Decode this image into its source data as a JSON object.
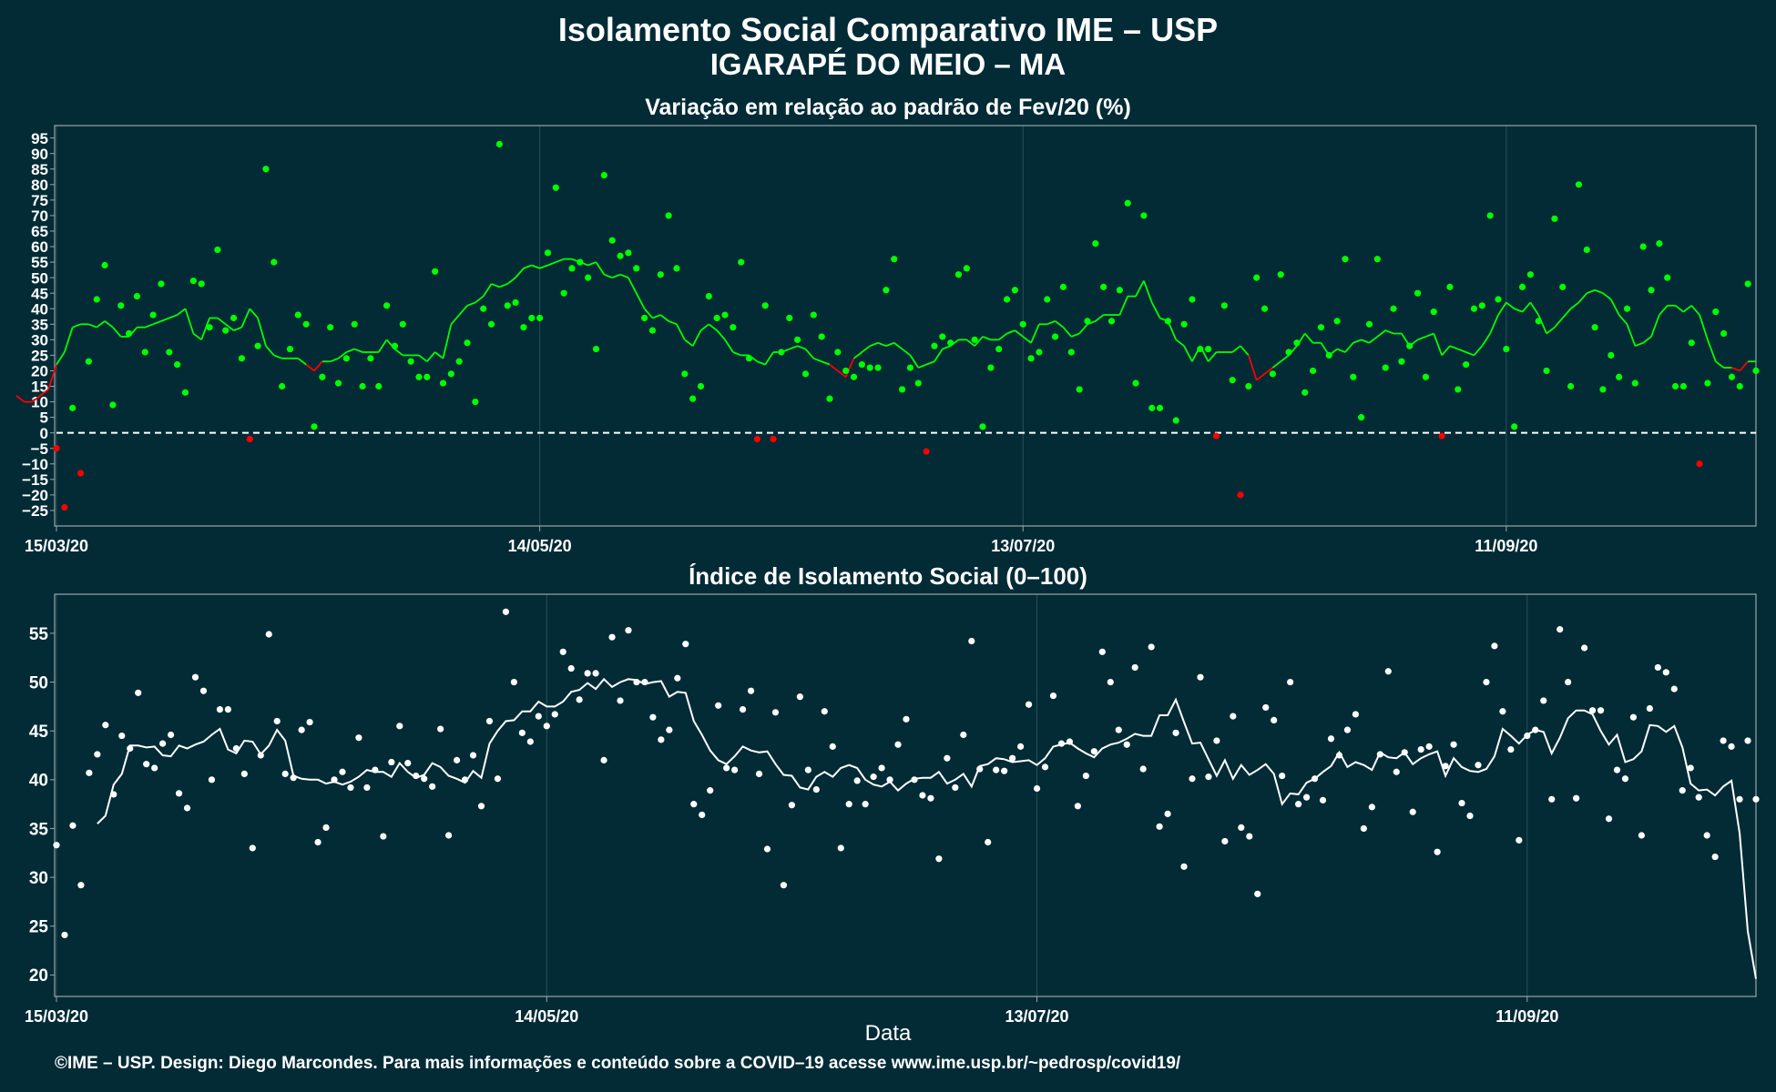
{
  "title_line1": "Isolamento Social Comparativo IME – USP",
  "title_line2": "IGARAPÉ DO MEIO – MA",
  "xlabel": "Data",
  "footer": "©IME – USP. Design: Diego Marcondes. Para mais informações e conteúdo sobre a COVID–19 acesse www.ime.usp.br/~pedrosp/covid19/",
  "colors": {
    "background": "#022b36",
    "positive": "#00ff00",
    "negative": "#ff0000",
    "index": "#ffffff",
    "panel_border": "#9aa5a8",
    "grid": "#2a4f59"
  },
  "chart_data": [
    {
      "type": "scatter",
      "title": "Variação em relação ao padrão de Fev/20 (%)",
      "x_tick_labels": [
        "15/03/20",
        "14/05/20",
        "13/07/20",
        "11/09/20"
      ],
      "ylim": [
        -30,
        99
      ],
      "y_ticks": [
        -25,
        -20,
        -15,
        -10,
        -5,
        0,
        5,
        10,
        15,
        20,
        25,
        30,
        35,
        40,
        45,
        50,
        55,
        60,
        65,
        70,
        75,
        80,
        85,
        90,
        95
      ],
      "reference_line": 0,
      "trend_line": "moving average",
      "values": [
        -5,
        -24,
        8,
        -13,
        23,
        43,
        54,
        9,
        41,
        32,
        44,
        26,
        38,
        48,
        26,
        22,
        13,
        49,
        48,
        34,
        59,
        33,
        37,
        24,
        -2,
        28,
        85,
        55,
        15,
        27,
        38,
        35,
        2,
        18,
        34,
        16,
        24,
        35,
        15,
        24,
        15,
        41,
        28,
        35,
        23,
        18,
        18,
        52,
        16,
        19,
        23,
        29,
        10,
        40,
        35,
        93,
        41,
        42,
        34,
        37,
        37,
        58,
        79,
        45,
        53,
        55,
        50,
        27,
        83,
        62,
        57,
        58,
        53,
        37,
        33,
        51,
        70,
        53,
        19,
        11,
        15,
        44,
        37,
        38,
        34,
        55,
        24,
        -2,
        41,
        -2,
        26,
        37,
        30,
        19,
        38,
        31,
        11,
        26,
        20,
        18,
        22,
        21,
        21,
        46,
        56,
        14,
        21,
        16,
        -6,
        28,
        31,
        29,
        51,
        53,
        30,
        2,
        21,
        27,
        43,
        46,
        35,
        24,
        26,
        43,
        31,
        47,
        26,
        14,
        36,
        61,
        47,
        36,
        46,
        74,
        16,
        70,
        8,
        8,
        36,
        4,
        35,
        43,
        27,
        27,
        -1,
        41,
        17,
        -20,
        15,
        50,
        40,
        19,
        51,
        26,
        29,
        13,
        20,
        34,
        25,
        36,
        56,
        18,
        5,
        35,
        56,
        21,
        40,
        23,
        28,
        45,
        18,
        39,
        -1,
        47,
        14,
        22,
        40,
        41,
        70,
        43,
        27,
        2,
        47,
        51,
        36,
        20,
        69,
        47,
        15,
        80,
        59,
        34,
        14,
        25,
        18,
        40,
        16,
        60,
        46,
        61,
        50,
        15,
        15,
        29,
        -10,
        16,
        39,
        32,
        18,
        15,
        48,
        20
      ],
      "moving_average": [
        12,
        10,
        10,
        12,
        14,
        22,
        26,
        34,
        35,
        35,
        34,
        36,
        34,
        31,
        31,
        34,
        34,
        35,
        36,
        37,
        38,
        40,
        32,
        30,
        37,
        37,
        35,
        33,
        34,
        40,
        37,
        28,
        25,
        24,
        24,
        24,
        22,
        20,
        23,
        23,
        24,
        26,
        27,
        26,
        26,
        26,
        30,
        27,
        25,
        25,
        25,
        23,
        26,
        24,
        35,
        38,
        41,
        42,
        44,
        48,
        47,
        48,
        50,
        53,
        54,
        53,
        54,
        55,
        56,
        56,
        55,
        54,
        55,
        51,
        50,
        51,
        50,
        45,
        40,
        37,
        38,
        36,
        35,
        30,
        28,
        33,
        35,
        33,
        30,
        26,
        25,
        25,
        23,
        22,
        26,
        26,
        27,
        28,
        27,
        24,
        23,
        22,
        20,
        18,
        24,
        26,
        28,
        29,
        28,
        29,
        27,
        25,
        21,
        22,
        23,
        27,
        28,
        30,
        30,
        28,
        31,
        30,
        30,
        32,
        33,
        31,
        29,
        35,
        35,
        36,
        34,
        31,
        32,
        35,
        36,
        38,
        38,
        38,
        44,
        44,
        49,
        42,
        37,
        36,
        30,
        28,
        23,
        28,
        23,
        26,
        26,
        26,
        28,
        25,
        17,
        19,
        21,
        23,
        25,
        28,
        32,
        29,
        29,
        25,
        27,
        26,
        29,
        30,
        29,
        31,
        33,
        32,
        32,
        28,
        30,
        31,
        32,
        25,
        28,
        27,
        26,
        25,
        28,
        32,
        38,
        42,
        40,
        39,
        42,
        38,
        32,
        34,
        37,
        40,
        42,
        45,
        46,
        45,
        43,
        38,
        35,
        28,
        29,
        31,
        38,
        41,
        41,
        39,
        41,
        38,
        30,
        23,
        21,
        21,
        20,
        23,
        23
      ]
    },
    {
      "type": "scatter",
      "title": "Índice de Isolamento Social (0–100)",
      "x_tick_labels": [
        "15/03/20",
        "14/05/20",
        "13/07/20",
        "11/09/20"
      ],
      "ylim": [
        17.8,
        59
      ],
      "y_ticks": [
        20,
        25,
        30,
        35,
        40,
        45,
        50,
        55
      ],
      "trend_line": "moving average",
      "values": [
        33.3,
        24.1,
        35.3,
        29.2,
        40.7,
        42.6,
        45.6,
        38.5,
        44.5,
        43.2,
        48.9,
        41.6,
        41.2,
        43.7,
        44.6,
        38.6,
        37.1,
        50.5,
        49.1,
        40.0,
        47.2,
        47.2,
        43.2,
        40.6,
        33.0,
        42.5,
        54.9,
        46.0,
        40.6,
        40.2,
        45.1,
        45.9,
        33.6,
        35.1,
        40.0,
        40.8,
        39.2,
        44.3,
        39.2,
        41.0,
        34.2,
        41.8,
        45.5,
        41.7,
        40.4,
        40.1,
        39.3,
        45.2,
        34.3,
        42.0,
        40.0,
        42.5,
        37.3,
        46.0,
        40.1,
        57.2,
        50.0,
        44.8,
        43.9,
        46.5,
        45.5,
        46.7,
        53.1,
        51.4,
        48.2,
        50.9,
        50.9,
        42.0,
        54.6,
        48.1,
        55.3,
        50.0,
        50.0,
        46.4,
        44.1,
        45.1,
        50.4,
        53.9,
        37.5,
        36.4,
        38.9,
        47.6,
        41.2,
        41.0,
        47.2,
        49.1,
        40.6,
        32.9,
        46.9,
        29.2,
        37.4,
        48.5,
        41.0,
        39.0,
        47.0,
        43.4,
        33.0,
        37.5,
        39.9,
        37.5,
        40.3,
        41.2,
        40.0,
        43.6,
        46.2,
        40.0,
        38.4,
        38.1,
        31.9,
        42.2,
        39.2,
        44.6,
        54.2,
        41.1,
        33.6,
        41.0,
        40.9,
        42.2,
        43.4,
        47.7,
        39.1,
        41.3,
        48.6,
        43.7,
        43.9,
        37.3,
        40.4,
        42.9,
        53.1,
        50.0,
        45.1,
        43.6,
        51.5,
        41.1,
        53.6,
        35.2,
        36.5,
        44.8,
        31.1,
        40.1,
        50.5,
        40.3,
        44.0,
        33.7,
        46.5,
        35.1,
        34.2,
        28.3,
        47.4,
        46.1,
        40.4,
        50.0,
        37.5,
        38.2,
        40.1,
        37.9,
        44.2,
        42.5,
        45.1,
        46.7,
        35.0,
        37.2,
        42.6,
        51.1,
        40.8,
        42.8,
        36.7,
        43.1,
        43.4,
        32.6,
        41.4,
        43.6,
        37.6,
        36.3,
        41.5,
        50.0,
        53.7,
        47.0,
        43.1,
        33.8,
        44.5,
        45.1,
        48.1,
        38.0,
        55.4,
        50.0,
        38.1,
        53.5,
        47.1,
        47.1,
        36.0,
        41.0,
        40.1,
        46.4,
        34.3,
        47.3,
        51.5,
        51.0,
        49.3,
        38.9,
        41.2,
        38.2,
        34.3,
        32.1,
        44.0,
        43.4,
        38.0,
        44.0,
        38.0
      ],
      "moving_average": [
        35.5,
        36.3,
        39.5,
        40.6,
        43.5,
        43.5,
        43.3,
        43.4,
        42.5,
        42.4,
        43.5,
        43.2,
        43.6,
        43.9,
        44.6,
        45.2,
        43.1,
        42.7,
        44.0,
        43.9,
        42.6,
        43.5,
        45.1,
        44.0,
        40.4,
        40.1,
        40.0,
        40.0,
        39.6,
        39.8,
        39.5,
        39.8,
        40.3,
        41.0,
        40.8,
        40.8,
        40.3,
        41.7,
        40.8,
        40.2,
        40.5,
        41.7,
        41.3,
        40.4,
        40.1,
        39.7,
        40.9,
        40.2,
        43.7,
        45.0,
        46.0,
        46.1,
        47.0,
        47.0,
        48.0,
        47.5,
        47.5,
        48.0,
        49.0,
        49.2,
        49.9,
        49.3,
        50.3,
        49.5,
        50.0,
        50.3,
        50.2,
        49.8,
        50.0,
        50.1,
        48.5,
        49.0,
        48.9,
        46.0,
        44.6,
        43.0,
        42.0,
        41.6,
        42.4,
        43.4,
        43.0,
        42.8,
        42.9,
        41.6,
        40.5,
        40.4,
        39.2,
        39.0,
        40.3,
        40.8,
        40.3,
        41.2,
        41.5,
        41.2,
        40.0,
        39.5,
        39.3,
        39.8,
        38.9,
        39.6,
        40.1,
        40.2,
        40.2,
        40.8,
        39.6,
        40.0,
        40.6,
        39.3,
        41.4,
        41.6,
        42.2,
        42.1,
        41.8,
        41.9,
        42.0,
        41.5,
        42.2,
        43.4,
        43.6,
        43.8,
        43.2,
        42.7,
        42.3,
        43.2,
        43.6,
        43.8,
        44.2,
        44.7,
        44.5,
        44.5,
        46.6,
        46.6,
        48.2,
        45.9,
        43.7,
        43.8,
        42.1,
        40.4,
        42.0,
        40.1,
        41.5,
        40.5,
        41.0,
        41.6,
        40.6,
        37.5,
        38.6,
        38.5,
        39.7,
        40.1,
        40.8,
        41.4,
        42.8,
        41.3,
        41.8,
        41.5,
        41.0,
        42.8,
        42.3,
        42.2,
        42.8,
        41.6,
        42.2,
        42.6,
        42.9,
        40.4,
        42.2,
        41.3,
        40.9,
        40.8,
        41.1,
        42.4,
        45.2,
        44.5,
        43.7,
        44.6,
        45.1,
        44.9,
        42.7,
        44.3,
        46.3,
        47.1,
        47.1,
        46.7,
        45.0,
        43.6,
        44.6,
        41.8,
        42.1,
        42.9,
        45.6,
        45.5,
        44.9,
        45.5,
        43.3,
        39.6,
        38.9,
        39.0,
        38.4,
        39.3,
        39.9,
        34.5,
        24.5,
        19.6
      ]
    }
  ]
}
